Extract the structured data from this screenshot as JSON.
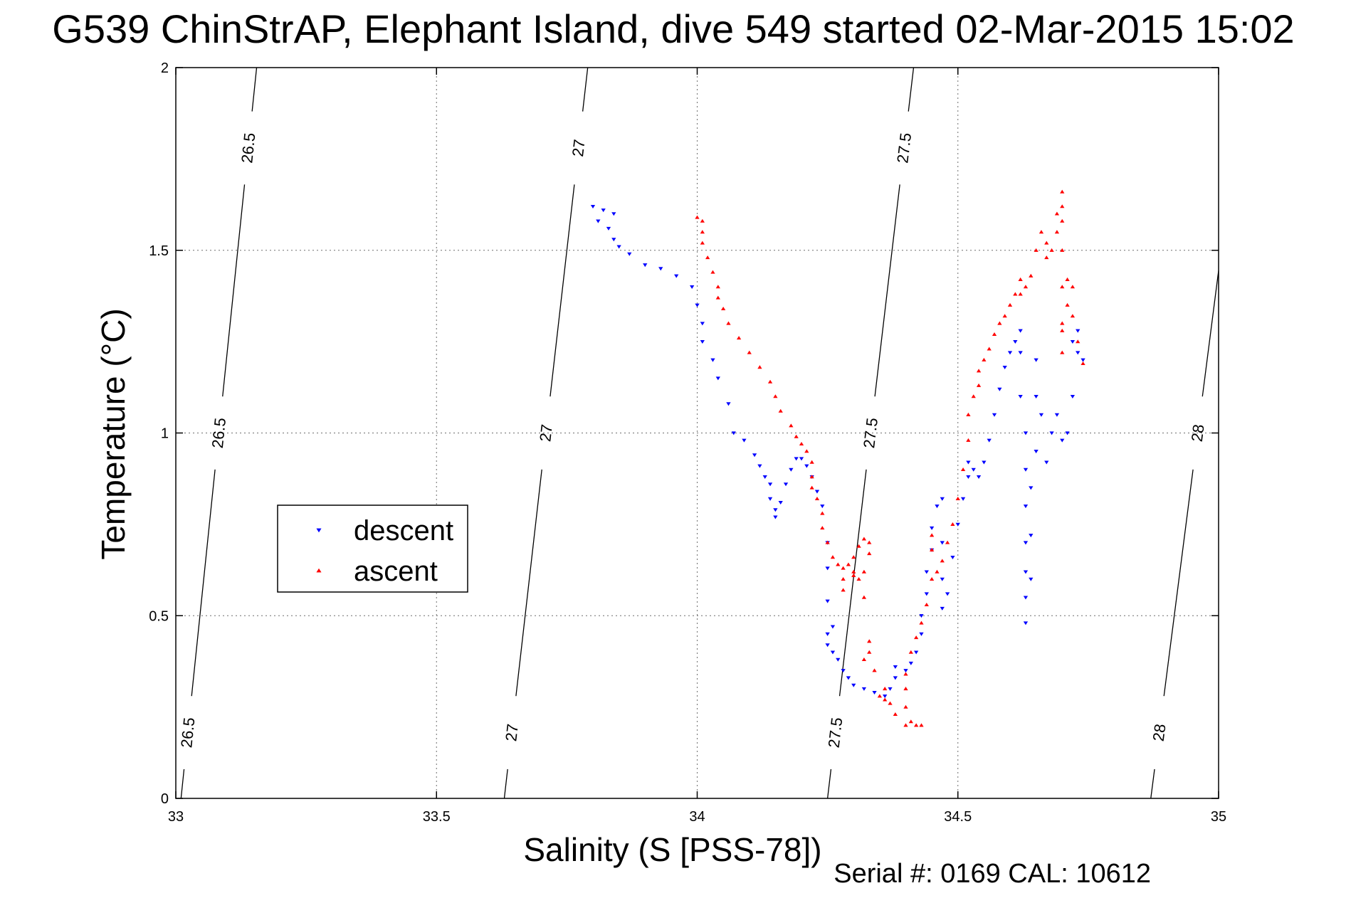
{
  "title": "G539 ChinStrAP, Elephant Island, dive 549 started 02-Mar-2015 15:02",
  "footer": "Serial #: 0169 CAL: 10612",
  "colors": {
    "descent": "#0000ff",
    "ascent": "#ff0000",
    "isopycnal": "#000000",
    "grid": "#6e6e6e"
  },
  "chart_data": {
    "type": "scatter",
    "title": "G539 ChinStrAP, Elephant Island, dive 549 started 02-Mar-2015 15:02",
    "xlabel": "Salinity (S [PSS-78])",
    "ylabel": "Temperature (°C)",
    "xlim": [
      33,
      35
    ],
    "ylim": [
      0,
      2
    ],
    "xticks": [
      33,
      33.5,
      34,
      34.5,
      35
    ],
    "xtick_labels": [
      "33",
      "33.5",
      "34",
      "34.5",
      "35"
    ],
    "yticks": [
      0,
      0.5,
      1,
      1.5,
      2
    ],
    "ytick_labels": [
      "0",
      "0.5",
      "1",
      "1.5",
      "2"
    ],
    "grid": true,
    "legend_position": "middle-left",
    "isopycnals": [
      {
        "label": "26.5",
        "points": [
          [
            33.01,
            0
          ],
          [
            33.155,
            2
          ]
        ]
      },
      {
        "label": "27",
        "points": [
          [
            33.63,
            0
          ],
          [
            33.79,
            2
          ]
        ]
      },
      {
        "label": "27.5",
        "points": [
          [
            34.25,
            0
          ],
          [
            34.415,
            2
          ]
        ]
      },
      {
        "label": "28",
        "points": [
          [
            34.87,
            0
          ],
          [
            35.05,
            2
          ]
        ]
      }
    ],
    "series": [
      {
        "name": "descent",
        "marker": "triangle-down",
        "color": "#0000ff",
        "points": [
          [
            33.8,
            1.62
          ],
          [
            33.82,
            1.61
          ],
          [
            33.84,
            1.6
          ],
          [
            33.81,
            1.58
          ],
          [
            33.83,
            1.56
          ],
          [
            33.84,
            1.53
          ],
          [
            33.85,
            1.51
          ],
          [
            33.87,
            1.49
          ],
          [
            33.9,
            1.46
          ],
          [
            33.93,
            1.45
          ],
          [
            33.96,
            1.43
          ],
          [
            33.99,
            1.4
          ],
          [
            34.0,
            1.35
          ],
          [
            34.01,
            1.3
          ],
          [
            34.01,
            1.25
          ],
          [
            34.03,
            1.2
          ],
          [
            34.04,
            1.15
          ],
          [
            34.06,
            1.08
          ],
          [
            34.07,
            1.0
          ],
          [
            34.09,
            0.98
          ],
          [
            34.11,
            0.94
          ],
          [
            34.12,
            0.91
          ],
          [
            34.13,
            0.88
          ],
          [
            34.14,
            0.86
          ],
          [
            34.14,
            0.82
          ],
          [
            34.15,
            0.79
          ],
          [
            34.15,
            0.77
          ],
          [
            34.16,
            0.81
          ],
          [
            34.17,
            0.86
          ],
          [
            34.18,
            0.9
          ],
          [
            34.19,
            0.93
          ],
          [
            34.2,
            0.93
          ],
          [
            34.21,
            0.91
          ],
          [
            34.22,
            0.88
          ],
          [
            34.23,
            0.84
          ],
          [
            34.24,
            0.8
          ],
          [
            34.25,
            0.7
          ],
          [
            34.25,
            0.63
          ],
          [
            34.25,
            0.54
          ],
          [
            34.26,
            0.47
          ],
          [
            34.25,
            0.45
          ],
          [
            34.25,
            0.42
          ],
          [
            34.26,
            0.4
          ],
          [
            34.27,
            0.38
          ],
          [
            34.28,
            0.35
          ],
          [
            34.29,
            0.33
          ],
          [
            34.3,
            0.31
          ],
          [
            34.32,
            0.3
          ],
          [
            34.34,
            0.29
          ],
          [
            34.36,
            0.28
          ],
          [
            34.37,
            0.3
          ],
          [
            34.38,
            0.33
          ],
          [
            34.38,
            0.36
          ],
          [
            34.4,
            0.35
          ],
          [
            34.41,
            0.37
          ],
          [
            34.42,
            0.4
          ],
          [
            34.43,
            0.45
          ],
          [
            34.43,
            0.5
          ],
          [
            34.44,
            0.56
          ],
          [
            34.44,
            0.62
          ],
          [
            34.45,
            0.68
          ],
          [
            34.45,
            0.74
          ],
          [
            34.46,
            0.8
          ],
          [
            34.47,
            0.82
          ],
          [
            34.47,
            0.7
          ],
          [
            34.47,
            0.6
          ],
          [
            34.47,
            0.52
          ],
          [
            34.48,
            0.56
          ],
          [
            34.49,
            0.66
          ],
          [
            34.5,
            0.75
          ],
          [
            34.51,
            0.82
          ],
          [
            34.52,
            0.88
          ],
          [
            34.52,
            0.92
          ],
          [
            34.53,
            0.9
          ],
          [
            34.54,
            0.88
          ],
          [
            34.55,
            0.92
          ],
          [
            34.56,
            0.98
          ],
          [
            34.57,
            1.05
          ],
          [
            34.58,
            1.12
          ],
          [
            34.59,
            1.18
          ],
          [
            34.6,
            1.22
          ],
          [
            34.61,
            1.25
          ],
          [
            34.62,
            1.28
          ],
          [
            34.62,
            1.22
          ],
          [
            34.62,
            1.1
          ],
          [
            34.63,
            1.0
          ],
          [
            34.63,
            0.9
          ],
          [
            34.63,
            0.8
          ],
          [
            34.63,
            0.7
          ],
          [
            34.63,
            0.62
          ],
          [
            34.63,
            0.55
          ],
          [
            34.63,
            0.48
          ],
          [
            34.64,
            0.6
          ],
          [
            34.64,
            0.72
          ],
          [
            34.64,
            0.85
          ],
          [
            34.65,
            0.95
          ],
          [
            34.65,
            1.1
          ],
          [
            34.65,
            1.2
          ],
          [
            34.66,
            1.05
          ],
          [
            34.67,
            0.92
          ],
          [
            34.68,
            1.0
          ],
          [
            34.69,
            1.05
          ],
          [
            34.7,
            0.98
          ],
          [
            34.71,
            1.0
          ],
          [
            34.72,
            1.1
          ],
          [
            34.72,
            1.25
          ],
          [
            34.73,
            1.28
          ],
          [
            34.73,
            1.22
          ],
          [
            34.74,
            1.2
          ]
        ]
      },
      {
        "name": "ascent",
        "marker": "triangle-up",
        "color": "#ff0000",
        "points": [
          [
            34.74,
            1.19
          ],
          [
            34.73,
            1.25
          ],
          [
            34.72,
            1.32
          ],
          [
            34.72,
            1.4
          ],
          [
            34.71,
            1.42
          ],
          [
            34.71,
            1.35
          ],
          [
            34.7,
            1.28
          ],
          [
            34.7,
            1.22
          ],
          [
            34.7,
            1.3
          ],
          [
            34.7,
            1.4
          ],
          [
            34.7,
            1.5
          ],
          [
            34.7,
            1.58
          ],
          [
            34.7,
            1.62
          ],
          [
            34.7,
            1.66
          ],
          [
            34.69,
            1.6
          ],
          [
            34.69,
            1.55
          ],
          [
            34.68,
            1.5
          ],
          [
            34.67,
            1.48
          ],
          [
            34.67,
            1.52
          ],
          [
            34.66,
            1.55
          ],
          [
            34.65,
            1.5
          ],
          [
            34.64,
            1.43
          ],
          [
            34.63,
            1.4
          ],
          [
            34.62,
            1.38
          ],
          [
            34.62,
            1.42
          ],
          [
            34.61,
            1.38
          ],
          [
            34.6,
            1.35
          ],
          [
            34.59,
            1.32
          ],
          [
            34.58,
            1.3
          ],
          [
            34.57,
            1.27
          ],
          [
            34.56,
            1.23
          ],
          [
            34.55,
            1.2
          ],
          [
            34.54,
            1.17
          ],
          [
            34.54,
            1.13
          ],
          [
            34.53,
            1.1
          ],
          [
            34.52,
            1.05
          ],
          [
            34.52,
            0.98
          ],
          [
            34.51,
            0.9
          ],
          [
            34.5,
            0.82
          ],
          [
            34.49,
            0.75
          ],
          [
            34.48,
            0.7
          ],
          [
            34.47,
            0.65
          ],
          [
            34.46,
            0.62
          ],
          [
            34.45,
            0.68
          ],
          [
            34.45,
            0.72
          ],
          [
            34.45,
            0.6
          ],
          [
            34.44,
            0.53
          ],
          [
            34.43,
            0.48
          ],
          [
            34.42,
            0.44
          ],
          [
            34.41,
            0.4
          ],
          [
            34.4,
            0.34
          ],
          [
            34.4,
            0.3
          ],
          [
            34.4,
            0.25
          ],
          [
            34.41,
            0.21
          ],
          [
            34.42,
            0.2
          ],
          [
            34.43,
            0.2
          ],
          [
            34.4,
            0.2
          ],
          [
            34.38,
            0.23
          ],
          [
            34.37,
            0.26
          ],
          [
            34.36,
            0.27
          ],
          [
            34.36,
            0.3
          ],
          [
            34.35,
            0.28
          ],
          [
            34.34,
            0.35
          ],
          [
            34.33,
            0.4
          ],
          [
            34.33,
            0.43
          ],
          [
            34.32,
            0.38
          ],
          [
            34.32,
            0.55
          ],
          [
            34.31,
            0.6
          ],
          [
            34.3,
            0.62
          ],
          [
            34.29,
            0.64
          ],
          [
            34.28,
            0.6
          ],
          [
            34.28,
            0.57
          ],
          [
            34.3,
            0.66
          ],
          [
            34.31,
            0.69
          ],
          [
            34.32,
            0.71
          ],
          [
            34.33,
            0.7
          ],
          [
            34.33,
            0.67
          ],
          [
            34.32,
            0.62
          ],
          [
            34.3,
            0.61
          ],
          [
            34.28,
            0.63
          ],
          [
            34.27,
            0.64
          ],
          [
            34.26,
            0.66
          ],
          [
            34.25,
            0.7
          ],
          [
            34.24,
            0.74
          ],
          [
            34.24,
            0.78
          ],
          [
            34.23,
            0.82
          ],
          [
            34.22,
            0.85
          ],
          [
            34.22,
            0.88
          ],
          [
            34.22,
            0.92
          ],
          [
            34.21,
            0.95
          ],
          [
            34.2,
            0.97
          ],
          [
            34.19,
            0.99
          ],
          [
            34.18,
            1.02
          ],
          [
            34.16,
            1.06
          ],
          [
            34.15,
            1.1
          ],
          [
            34.14,
            1.14
          ],
          [
            34.12,
            1.18
          ],
          [
            34.1,
            1.22
          ],
          [
            34.08,
            1.26
          ],
          [
            34.06,
            1.3
          ],
          [
            34.05,
            1.34
          ],
          [
            34.04,
            1.37
          ],
          [
            34.04,
            1.4
          ],
          [
            34.03,
            1.44
          ],
          [
            34.02,
            1.48
          ],
          [
            34.01,
            1.52
          ],
          [
            34.01,
            1.55
          ],
          [
            34.01,
            1.58
          ],
          [
            34.0,
            1.59
          ]
        ]
      }
    ]
  }
}
